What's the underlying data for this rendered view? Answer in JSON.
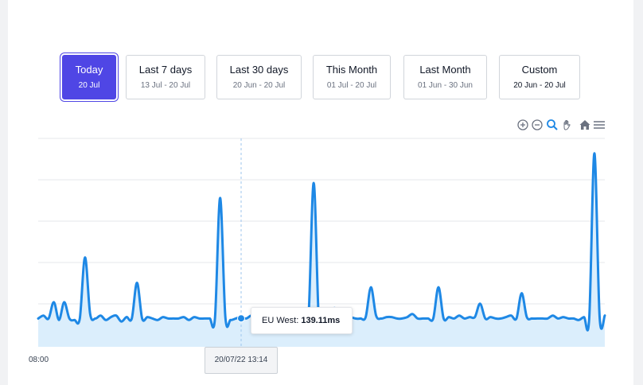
{
  "ranges": [
    {
      "label": "Today",
      "sub": "20 Jul",
      "active": true
    },
    {
      "label": "Last 7 days",
      "sub": "13 Jul - 20 Jul",
      "active": false
    },
    {
      "label": "Last 30 days",
      "sub": "20 Jun - 20 Jul",
      "active": false
    },
    {
      "label": "This Month",
      "sub": "01 Jul - 20 Jul",
      "active": false
    },
    {
      "label": "Last Month",
      "sub": "01 Jun - 30 Jun",
      "active": false
    },
    {
      "label": "Custom",
      "sub": "20 Jun - 20 Jul",
      "active": false
    }
  ],
  "toolbar": [
    "zoom-in-icon",
    "zoom-out-icon",
    "magnifier-icon",
    "pan-hand-icon",
    "home-icon",
    "menu-icon"
  ],
  "tooltip": {
    "series": "EU West:",
    "value": "139.11ms"
  },
  "crosshair": {
    "x_label": "20/07/22 13:14"
  },
  "axis": {
    "first_tick": "08:00"
  },
  "colors": {
    "accent": "#4f46e5",
    "series": "#1e88e5",
    "area": "#dbeefc"
  },
  "chart_data": {
    "type": "area",
    "series": [
      {
        "name": "EU West",
        "values": [
          139,
          141,
          139,
          150,
          138,
          150,
          139,
          138,
          139,
          180,
          142,
          139,
          141,
          138,
          140,
          141,
          137,
          140,
          139,
          163,
          139,
          140,
          139,
          138,
          140,
          139,
          139,
          139,
          140,
          138,
          140,
          139,
          139,
          139,
          139,
          220,
          140,
          138,
          139,
          140,
          139,
          141,
          140,
          137,
          140,
          139,
          140,
          141,
          139,
          139,
          139,
          138,
          140,
          230,
          137,
          141,
          139,
          146,
          139,
          139,
          140,
          139,
          139,
          140,
          160,
          141,
          139,
          140,
          140,
          139,
          139,
          140,
          142,
          139,
          139,
          139,
          139,
          160,
          139,
          140,
          139,
          141,
          139,
          140,
          140,
          149,
          139,
          140,
          139,
          139,
          140,
          141,
          139,
          156,
          140,
          139,
          139,
          139,
          139,
          141,
          139,
          140,
          139,
          139,
          138,
          140,
          139,
          250,
          140,
          141
        ]
      }
    ],
    "highlight": {
      "series": "EU West",
      "value": 139.11,
      "x": "20/07/22 13:14"
    },
    "xlabel": "",
    "ylabel": "",
    "ylim": [
      120,
      260
    ],
    "grid": true,
    "legend": "none"
  }
}
